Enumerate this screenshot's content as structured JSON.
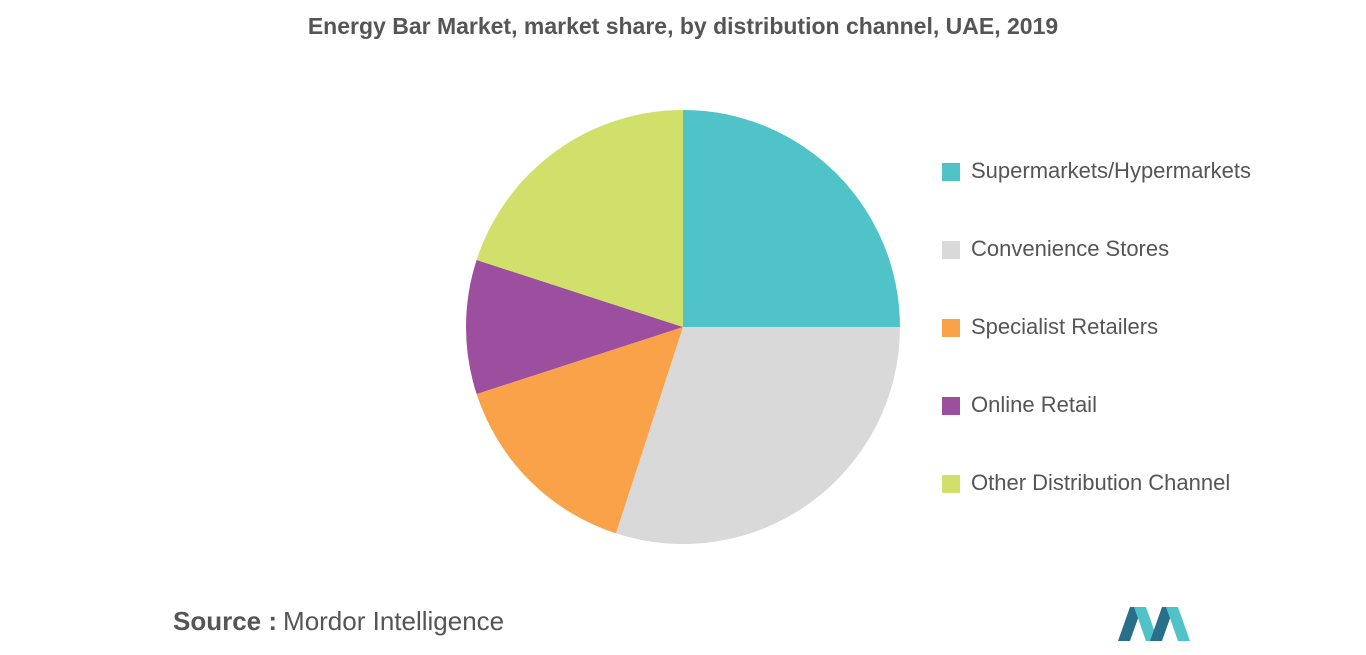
{
  "chart_data": {
    "type": "pie",
    "title": "Energy Bar Market, market share, by distribution channel, UAE, 2019",
    "categories": [
      "Supermarkets/Hypermarkets",
      "Convenience Stores",
      "Specialist Retailers",
      "Online Retail",
      "Other Distribution Channel"
    ],
    "values": [
      25,
      30,
      15,
      10,
      20
    ],
    "colors": [
      "#4fc3c8",
      "#d9d9d9",
      "#f9a24a",
      "#9c4f9f",
      "#d1e06b"
    ],
    "legend": "right"
  },
  "footer": {
    "source_label": "Source :",
    "source": "Mordor Intelligence"
  }
}
